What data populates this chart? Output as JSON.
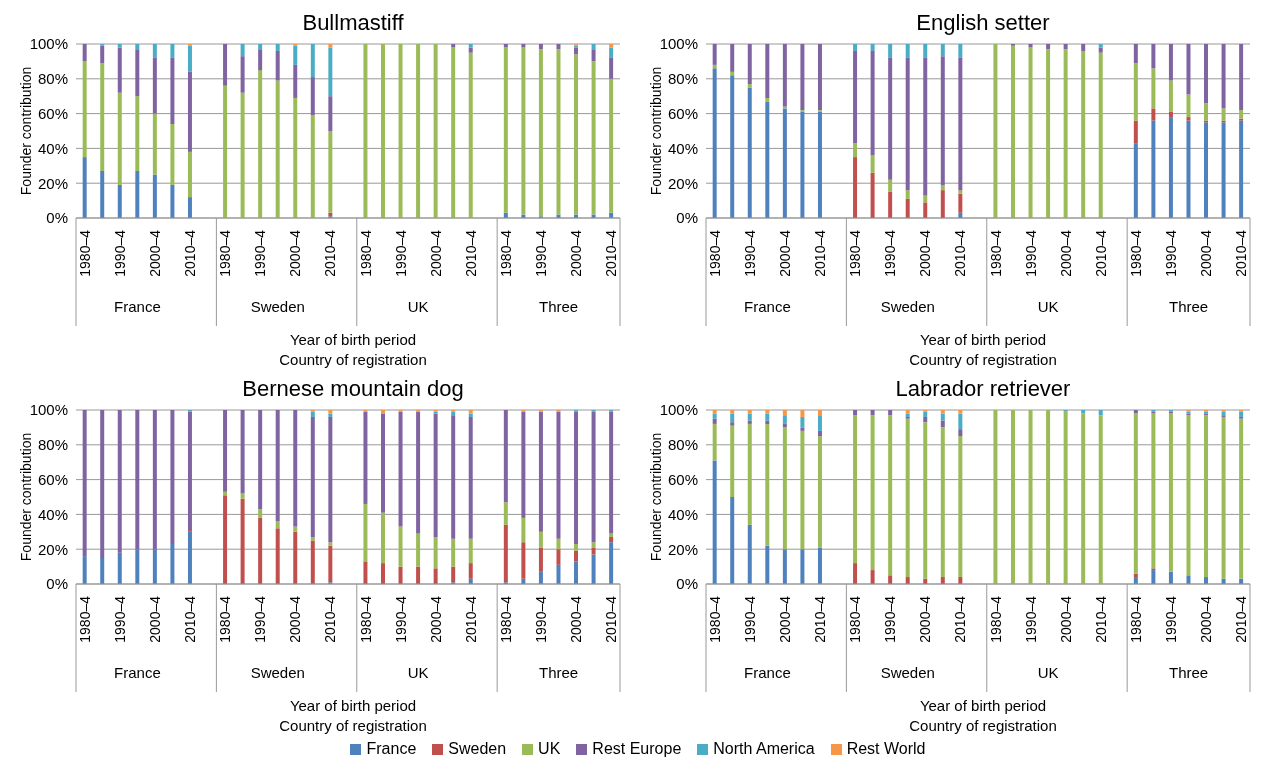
{
  "chart_data": [
    {
      "type": "bar",
      "title": "Bullmastiff",
      "ylabel": "Founder contribution",
      "xlabel": "Year of birth period\nCountry of registration",
      "stacked": true,
      "grid": "y",
      "legend": "bottom",
      "categories": [
        "1980–4",
        null,
        "1990–4",
        null,
        "2000–4",
        null,
        "2010–4",
        "1980–4",
        null,
        "1990–4",
        null,
        "2000–4",
        null,
        "2010–4",
        "1980–4",
        null,
        "1990–4",
        null,
        "2000–4",
        null,
        "2010–4",
        "1980–4",
        null,
        "1990–4",
        null,
        "2000–4",
        null,
        "2010–4"
      ],
      "annotations": [
        "France",
        "Sweden",
        "UK",
        "Three"
      ],
      "ylim": [
        0,
        100
      ],
      "yticks": [
        {
          "value": 0,
          "label": "0%"
        },
        {
          "value": 20,
          "label": "20%"
        },
        {
          "value": 40,
          "label": "40%"
        },
        {
          "value": 60,
          "label": "60%"
        },
        {
          "value": 80,
          "label": "80%"
        },
        {
          "value": 100,
          "label": "100%"
        }
      ],
      "series": [
        {
          "name": "France",
          "color": "#4f81bd",
          "values": [
            35,
            27,
            19,
            27,
            25,
            19,
            12,
            0,
            0,
            0,
            0,
            0,
            0,
            1,
            0,
            0,
            0,
            0,
            0,
            0,
            0,
            3,
            2,
            1,
            2,
            2,
            2,
            3
          ]
        },
        {
          "name": "Sweden",
          "color": "#c0504d",
          "values": [
            0,
            0,
            0,
            0,
            0,
            0,
            0,
            0,
            0,
            0,
            0,
            0,
            0,
            2,
            0,
            0,
            0,
            0,
            0,
            0,
            0,
            0,
            0,
            0,
            0,
            0,
            0,
            0
          ]
        },
        {
          "name": "UK",
          "color": "#9bbb59",
          "values": [
            55,
            62,
            53,
            43,
            35,
            35,
            26,
            76,
            72,
            85,
            79,
            69,
            59,
            47,
            100,
            100,
            100,
            100,
            100,
            98,
            95,
            95,
            96,
            96,
            95,
            92,
            88,
            77
          ]
        },
        {
          "name": "Rest Europe",
          "color": "#8064a2",
          "values": [
            10,
            10,
            26,
            27,
            32,
            38,
            46,
            24,
            21,
            12,
            17,
            19,
            22,
            20,
            0,
            0,
            0,
            0,
            0,
            2,
            3,
            2,
            2,
            3,
            3,
            4,
            7,
            12
          ]
        },
        {
          "name": "North America",
          "color": "#4bacc6",
          "values": [
            0,
            1,
            2,
            3,
            8,
            8,
            15,
            0,
            7,
            3,
            4,
            11,
            19,
            28,
            0,
            0,
            0,
            0,
            0,
            0,
            2,
            0,
            0,
            0,
            0,
            1,
            3,
            6
          ]
        },
        {
          "name": "Rest World",
          "color": "#f79646",
          "values": [
            0,
            0,
            0,
            0,
            0,
            0,
            1,
            0,
            0,
            0,
            0,
            1,
            0,
            2,
            0,
            0,
            0,
            0,
            0,
            0,
            0,
            0,
            0,
            0,
            0,
            1,
            0,
            2
          ]
        }
      ]
    },
    {
      "type": "bar",
      "title": "English setter",
      "ylabel": "Founder contribution",
      "xlabel": "Year of birth period\nCountry of registration",
      "stacked": true,
      "grid": "y",
      "legend": false,
      "categories": [
        "1980–4",
        null,
        "1990–4",
        null,
        "2000–4",
        null,
        "2010–4",
        "1980–4",
        null,
        "1990–4",
        null,
        "2000–4",
        null,
        "2010–4",
        "1980–4",
        null,
        "1990–4",
        null,
        "2000–4",
        null,
        "2010–4",
        "1980–4",
        null,
        "1990–4",
        null,
        "2000–4",
        null,
        "2010–4"
      ],
      "annotations": [
        "France",
        "Sweden",
        "UK",
        "Three"
      ],
      "ylim": [
        0,
        100
      ],
      "yticks": [
        {
          "value": 0,
          "label": "0%"
        },
        {
          "value": 20,
          "label": "20%"
        },
        {
          "value": 40,
          "label": "40%"
        },
        {
          "value": 60,
          "label": "60%"
        },
        {
          "value": 80,
          "label": "80%"
        },
        {
          "value": 100,
          "label": "100%"
        }
      ],
      "series": [
        {
          "color": "#4f81bd",
          "values": [
            86,
            82,
            75,
            67,
            63,
            61,
            61,
            0,
            0,
            0,
            0,
            0,
            0,
            3,
            0,
            0,
            0,
            0,
            0,
            0,
            0,
            43,
            56,
            58,
            56,
            55,
            55,
            56
          ]
        },
        {
          "color": "#c0504d",
          "values": [
            0,
            0,
            0,
            0,
            0,
            0,
            0,
            35,
            26,
            15,
            11,
            9,
            16,
            11,
            0,
            0,
            0,
            0,
            0,
            0,
            0,
            13,
            7,
            3,
            2,
            1,
            1,
            1
          ]
        },
        {
          "color": "#9bbb59",
          "values": [
            2,
            2,
            2,
            2,
            1,
            1,
            1,
            8,
            10,
            7,
            5,
            4,
            3,
            2,
            100,
            99,
            98,
            97,
            97,
            96,
            95,
            33,
            23,
            18,
            13,
            10,
            7,
            5
          ]
        },
        {
          "color": "#8064a2",
          "values": [
            12,
            16,
            23,
            31,
            36,
            38,
            38,
            53,
            60,
            70,
            76,
            79,
            74,
            76,
            0,
            1,
            2,
            3,
            3,
            4,
            3,
            11,
            14,
            21,
            29,
            34,
            37,
            38
          ]
        },
        {
          "color": "#4bacc6",
          "values": [
            0,
            0,
            0,
            0,
            0,
            0,
            0,
            4,
            4,
            8,
            8,
            8,
            7,
            8,
            0,
            0,
            0,
            0,
            0,
            0,
            2,
            0,
            0,
            0,
            0,
            0,
            0,
            0
          ]
        },
        {
          "color": "#f79646",
          "values": [
            0,
            0,
            0,
            0,
            0,
            0,
            0,
            0,
            0,
            0,
            0,
            0,
            0,
            0,
            0,
            0,
            0,
            0,
            0,
            0,
            0,
            0,
            0,
            0,
            0,
            0,
            0,
            0
          ]
        }
      ]
    },
    {
      "type": "bar",
      "title": "Bernese mountain dog",
      "ylabel": "Founder contribution",
      "xlabel": "Year of birth period\nCountry of registration",
      "stacked": true,
      "grid": "y",
      "legend": false,
      "categories": [
        "1980–4",
        null,
        "1990–4",
        null,
        "2000–4",
        null,
        "2010–4",
        "1980–4",
        null,
        "1990–4",
        null,
        "2000–4",
        null,
        "2010–4",
        "1980–4",
        null,
        "1990–4",
        null,
        "2000–4",
        null,
        "2010–4",
        "1980–4",
        null,
        "1990–4",
        null,
        "2000–4",
        null,
        "2010–4"
      ],
      "annotations": [
        "France",
        "Sweden",
        "UK",
        "Three"
      ],
      "ylim": [
        0,
        100
      ],
      "yticks": [
        {
          "value": 0,
          "label": "0%"
        },
        {
          "value": 20,
          "label": "20%"
        },
        {
          "value": 40,
          "label": "40%"
        },
        {
          "value": 60,
          "label": "60%"
        },
        {
          "value": 80,
          "label": "80%"
        },
        {
          "value": 100,
          "label": "100%"
        }
      ],
      "series": [
        {
          "color": "#4f81bd",
          "values": [
            16,
            15,
            18,
            20,
            20,
            23,
            30,
            0,
            0,
            0,
            0,
            0,
            0,
            1,
            0,
            0,
            0,
            0,
            0,
            1,
            3,
            1,
            3,
            7,
            11,
            13,
            17,
            24
          ]
        },
        {
          "color": "#c0504d",
          "values": [
            0,
            0,
            0,
            0,
            0,
            0,
            1,
            51,
            49,
            38,
            32,
            30,
            25,
            21,
            13,
            12,
            10,
            10,
            9,
            9,
            9,
            33,
            21,
            14,
            9,
            6,
            4,
            3
          ]
        },
        {
          "color": "#9bbb59",
          "values": [
            0,
            0,
            0,
            0,
            0,
            0,
            0,
            2,
            3,
            5,
            4,
            3,
            2,
            2,
            33,
            29,
            23,
            19,
            18,
            16,
            14,
            13,
            14,
            9,
            6,
            4,
            3,
            2
          ]
        },
        {
          "color": "#8064a2",
          "values": [
            84,
            85,
            82,
            80,
            80,
            77,
            68,
            47,
            48,
            57,
            64,
            67,
            69,
            72,
            53,
            57,
            66,
            70,
            71,
            71,
            70,
            53,
            61,
            69,
            73,
            76,
            75,
            70
          ]
        },
        {
          "color": "#4bacc6",
          "values": [
            0,
            0,
            0,
            0,
            0,
            0,
            1,
            0,
            0,
            0,
            0,
            0,
            3,
            2,
            0,
            0,
            0,
            0,
            1,
            2,
            2,
            0,
            0,
            0,
            0,
            1,
            1,
            1
          ]
        },
        {
          "color": "#f79646",
          "values": [
            0,
            0,
            0,
            0,
            0,
            0,
            0,
            0,
            0,
            0,
            0,
            0,
            1,
            2,
            1,
            2,
            1,
            1,
            1,
            1,
            2,
            0,
            1,
            1,
            1,
            0,
            0,
            0
          ]
        }
      ]
    },
    {
      "type": "bar",
      "title": "Labrador retriever",
      "ylabel": "Founder contribution",
      "xlabel": "Year of birth period\nCountry of registration",
      "stacked": true,
      "grid": "y",
      "legend": false,
      "categories": [
        "1980–4",
        null,
        "1990–4",
        null,
        "2000–4",
        null,
        "2010–4",
        "1980–4",
        null,
        "1990–4",
        null,
        "2000–4",
        null,
        "2010–4",
        "1980–4",
        null,
        "1990–4",
        null,
        "2000–4",
        null,
        "2010–4",
        "1980–4",
        null,
        "1990–4",
        null,
        "2000–4",
        null,
        "2010–4"
      ],
      "annotations": [
        "France",
        "Sweden",
        "UK",
        "Three"
      ],
      "ylim": [
        0,
        100
      ],
      "yticks": [
        {
          "value": 0,
          "label": "0%"
        },
        {
          "value": 20,
          "label": "20%"
        },
        {
          "value": 40,
          "label": "40%"
        },
        {
          "value": 60,
          "label": "60%"
        },
        {
          "value": 80,
          "label": "80%"
        },
        {
          "value": 100,
          "label": "100%"
        }
      ],
      "series": [
        {
          "color": "#4f81bd",
          "values": [
            71,
            50,
            34,
            22,
            20,
            20,
            21,
            0,
            0,
            0,
            0,
            0,
            0,
            0,
            0,
            0,
            0,
            0,
            0,
            0,
            0,
            4,
            8,
            7,
            5,
            4,
            3,
            3
          ]
        },
        {
          "color": "#c0504d",
          "values": [
            0,
            0,
            0,
            0,
            0,
            0,
            0,
            12,
            8,
            5,
            4,
            3,
            4,
            4,
            0,
            0,
            0,
            0,
            0,
            0,
            0,
            2,
            1,
            0,
            0,
            0,
            0,
            0
          ]
        },
        {
          "color": "#9bbb59",
          "values": [
            21,
            41,
            58,
            70,
            70,
            68,
            64,
            85,
            89,
            92,
            91,
            90,
            86,
            81,
            100,
            100,
            100,
            100,
            99,
            98,
            97,
            92,
            89,
            91,
            92,
            93,
            93,
            92
          ]
        },
        {
          "color": "#8064a2",
          "values": [
            3,
            2,
            2,
            2,
            2,
            2,
            3,
            3,
            3,
            3,
            1,
            3,
            4,
            4,
            0,
            0,
            0,
            0,
            0,
            0,
            0,
            2,
            1,
            1,
            1,
            1,
            1,
            1
          ]
        },
        {
          "color": "#4bacc6",
          "values": [
            3,
            5,
            4,
            4,
            5,
            6,
            9,
            0,
            0,
            0,
            2,
            3,
            4,
            9,
            0,
            0,
            0,
            0,
            1,
            2,
            3,
            0,
            1,
            1,
            1,
            1,
            2,
            3
          ]
        },
        {
          "color": "#f79646",
          "values": [
            2,
            2,
            2,
            2,
            3,
            4,
            3,
            0,
            0,
            0,
            2,
            1,
            2,
            2,
            0,
            0,
            0,
            0,
            0,
            0,
            0,
            0,
            0,
            0,
            1,
            1,
            1,
            1
          ]
        }
      ]
    }
  ]
}
